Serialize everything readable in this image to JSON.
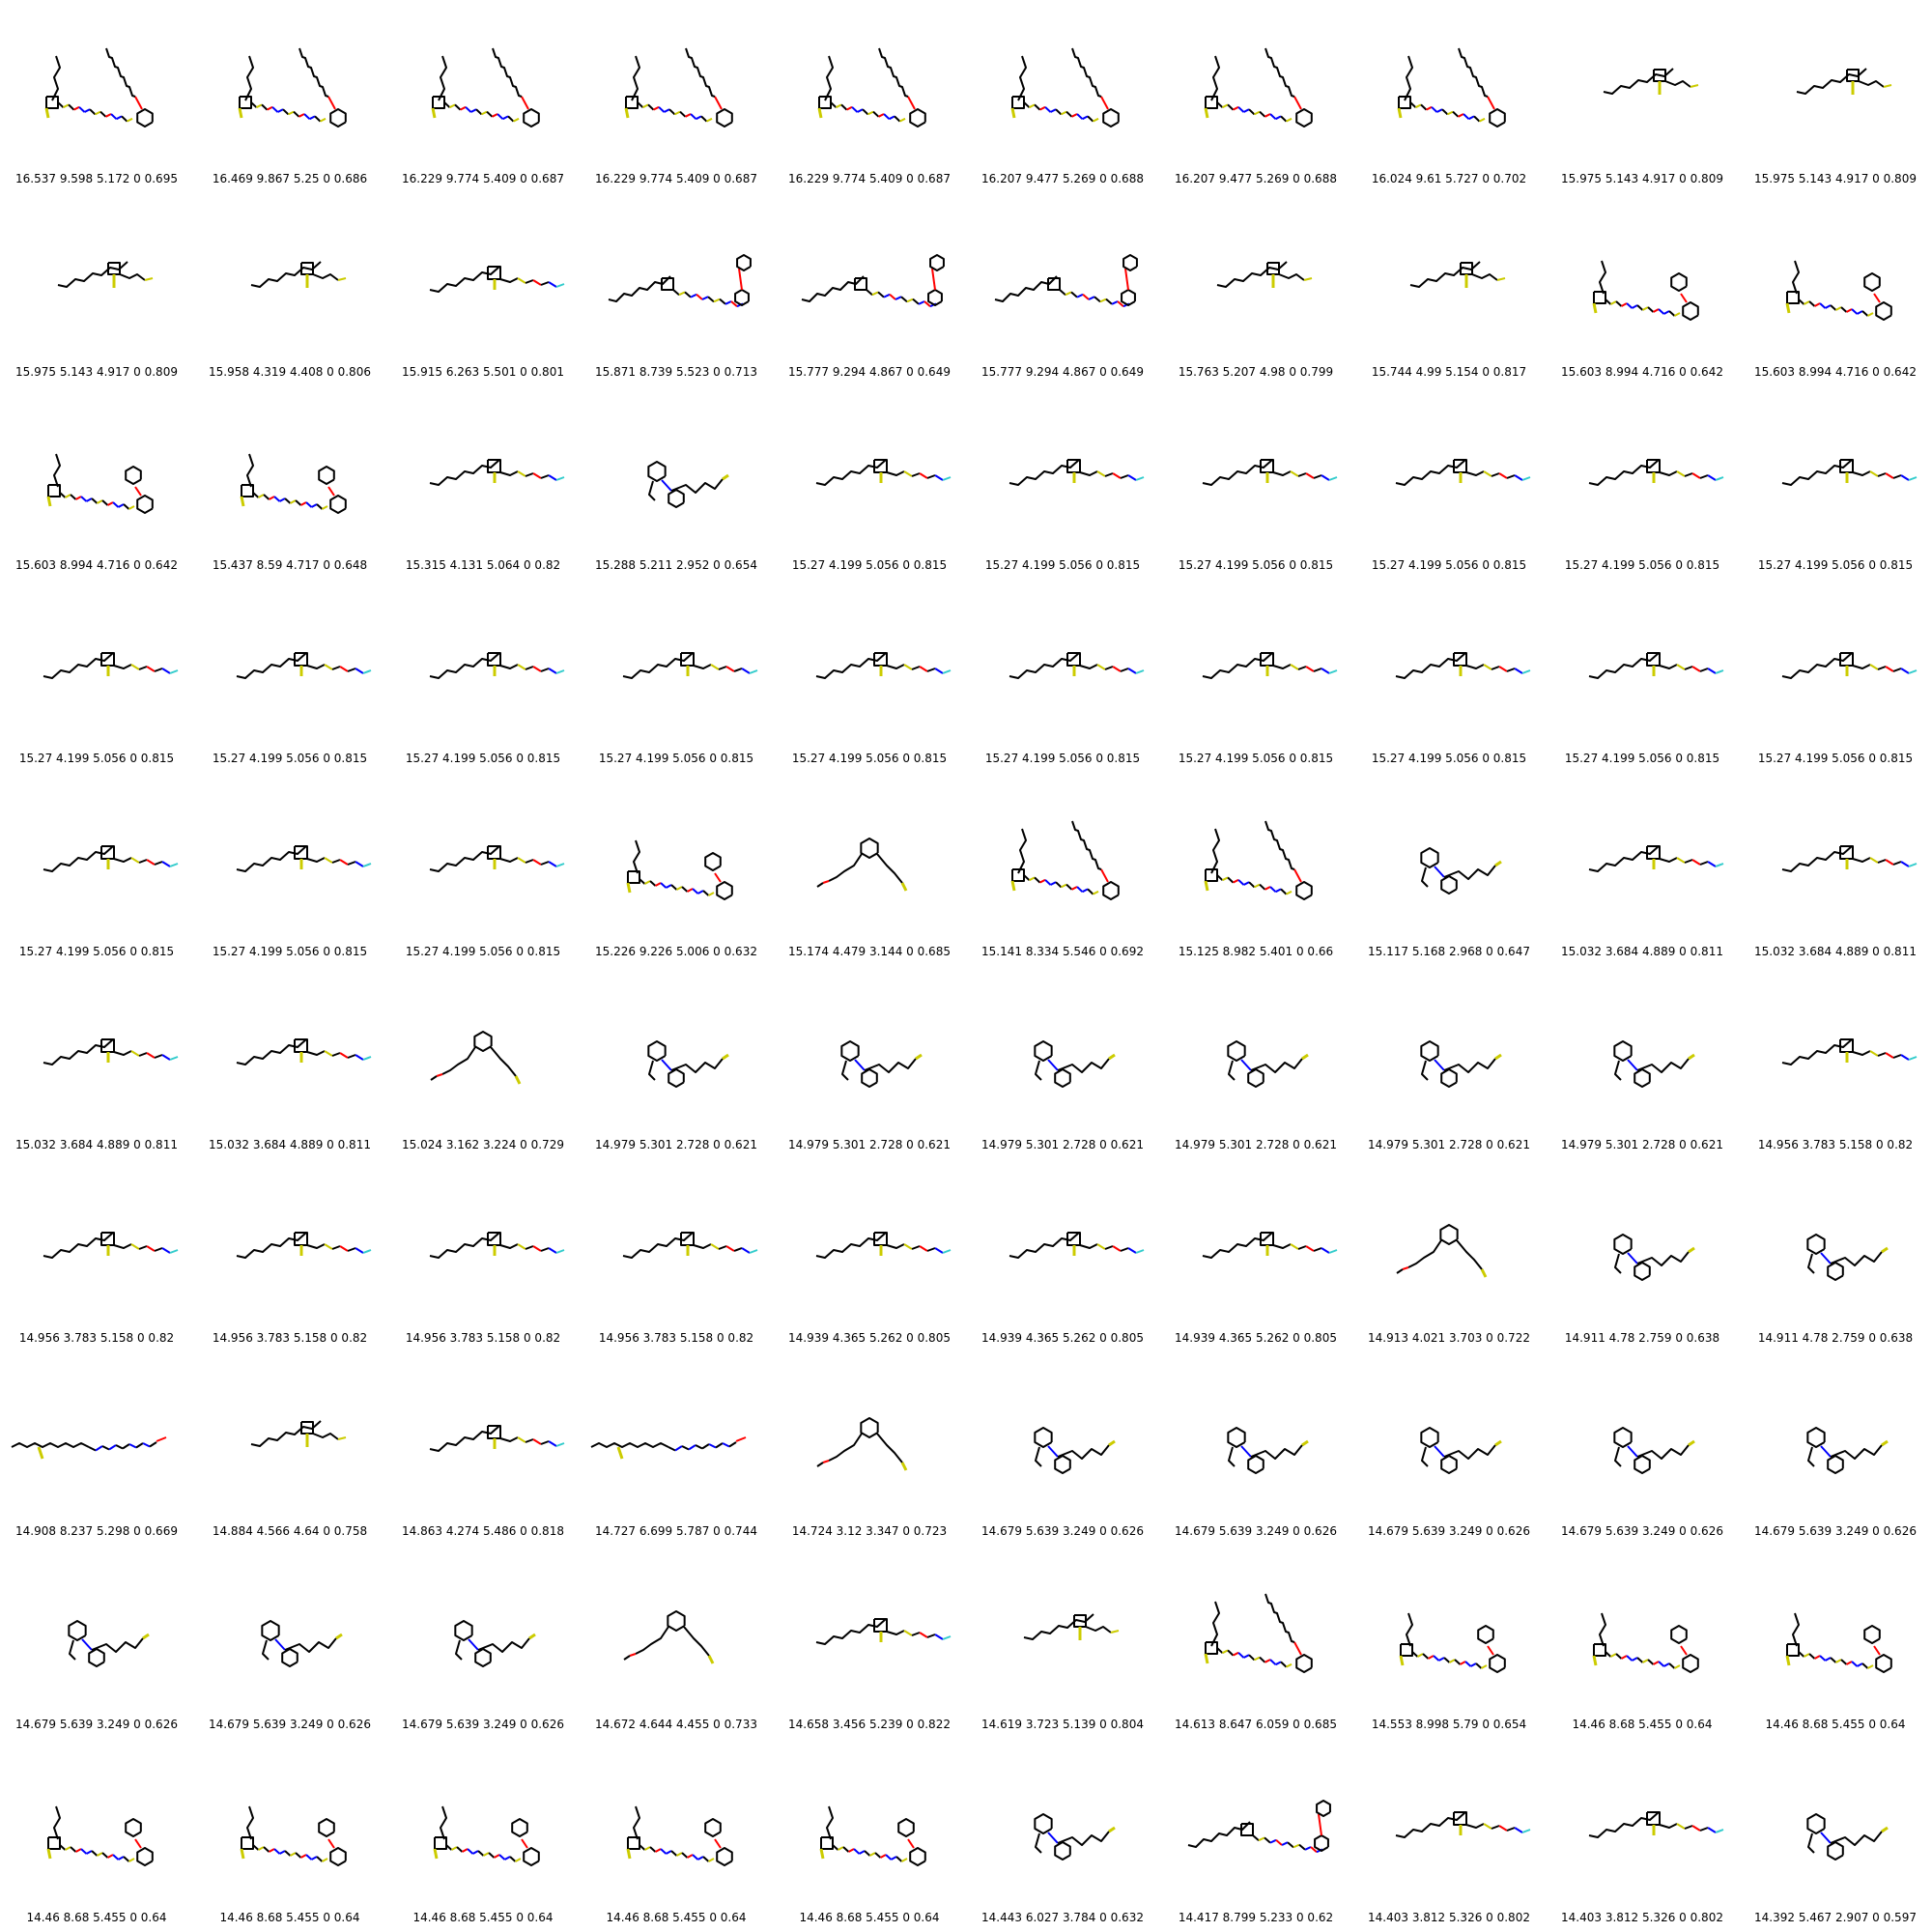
{
  "grid": {
    "columns": 10,
    "rows": 10
  },
  "colors": {
    "carbon": "#000000",
    "oxygen": "#ff0000",
    "nitrogen": "#0000ff",
    "sulfur": "#cccc00",
    "fluorine": "#33cccc"
  },
  "cells": [
    {
      "label": "16.537 9.598 5.172 0 0.695",
      "type": "macro-tall"
    },
    {
      "label": "16.469 9.867 5.25 0 0.686",
      "type": "macro-tall"
    },
    {
      "label": "16.229 9.774 5.409 0 0.687",
      "type": "macro-tall"
    },
    {
      "label": "16.229 9.774 5.409 0 0.687",
      "type": "macro-tall"
    },
    {
      "label": "16.229 9.774 5.409 0 0.687",
      "type": "macro-tall"
    },
    {
      "label": "16.207 9.477 5.269 0 0.688",
      "type": "macro-tall"
    },
    {
      "label": "16.207 9.477 5.269 0 0.688",
      "type": "macro-tall"
    },
    {
      "label": "16.024 9.61 5.727 0 0.702",
      "type": "macro-tall"
    },
    {
      "label": "15.975 5.143 4.917 0 0.809",
      "type": "small-linear"
    },
    {
      "label": "15.975 5.143 4.917 0 0.809",
      "type": "small-linear"
    },
    {
      "label": "15.975 5.143 4.917 0 0.809",
      "type": "small-linear"
    },
    {
      "label": "15.958 4.319 4.408 0 0.806",
      "type": "small-linear"
    },
    {
      "label": "15.915 6.263 5.501 0 0.801",
      "type": "linear"
    },
    {
      "label": "15.871 8.739 5.523 0 0.713",
      "type": "linear-ring"
    },
    {
      "label": "15.777 9.294 4.867 0 0.649",
      "type": "linear-ring"
    },
    {
      "label": "15.777 9.294 4.867 0 0.649",
      "type": "linear-ring"
    },
    {
      "label": "15.763 5.207 4.98 0 0.799",
      "type": "small-linear"
    },
    {
      "label": "15.744 4.99 5.154 0 0.817",
      "type": "small-linear"
    },
    {
      "label": "15.603 8.994 4.716 0 0.642",
      "type": "macro-ring"
    },
    {
      "label": "15.603 8.994 4.716 0 0.642",
      "type": "macro-ring"
    },
    {
      "label": "15.603 8.994 4.716 0 0.642",
      "type": "macro-ring"
    },
    {
      "label": "15.437 8.59 4.717 0 0.648",
      "type": "macro-ring"
    },
    {
      "label": "15.315 4.131 5.064 0 0.82",
      "type": "linear"
    },
    {
      "label": "15.288 5.211 2.952 0 0.654",
      "type": "aryl"
    },
    {
      "label": "15.27 4.199 5.056 0 0.815",
      "type": "linear"
    },
    {
      "label": "15.27 4.199 5.056 0 0.815",
      "type": "linear"
    },
    {
      "label": "15.27 4.199 5.056 0 0.815",
      "type": "linear"
    },
    {
      "label": "15.27 4.199 5.056 0 0.815",
      "type": "linear"
    },
    {
      "label": "15.27 4.199 5.056 0 0.815",
      "type": "linear"
    },
    {
      "label": "15.27 4.199 5.056 0 0.815",
      "type": "linear"
    },
    {
      "label": "15.27 4.199 5.056 0 0.815",
      "type": "linear"
    },
    {
      "label": "15.27 4.199 5.056 0 0.815",
      "type": "linear"
    },
    {
      "label": "15.27 4.199 5.056 0 0.815",
      "type": "linear"
    },
    {
      "label": "15.27 4.199 5.056 0 0.815",
      "type": "linear"
    },
    {
      "label": "15.27 4.199 5.056 0 0.815",
      "type": "linear"
    },
    {
      "label": "15.27 4.199 5.056 0 0.815",
      "type": "linear"
    },
    {
      "label": "15.27 4.199 5.056 0 0.815",
      "type": "linear"
    },
    {
      "label": "15.27 4.199 5.056 0 0.815",
      "type": "linear"
    },
    {
      "label": "15.27 4.199 5.056 0 0.815",
      "type": "linear"
    },
    {
      "label": "15.27 4.199 5.056 0 0.815",
      "type": "linear"
    },
    {
      "label": "15.27 4.199 5.056 0 0.815",
      "type": "linear"
    },
    {
      "label": "15.27 4.199 5.056 0 0.815",
      "type": "linear"
    },
    {
      "label": "15.27 4.199 5.056 0 0.815",
      "type": "linear"
    },
    {
      "label": "15.226 9.226 5.006 0 0.632",
      "type": "macro-ring"
    },
    {
      "label": "15.174 4.479 3.144 0 0.685",
      "type": "benzene"
    },
    {
      "label": "15.141 8.334 5.546 0 0.692",
      "type": "macro-tall"
    },
    {
      "label": "15.125 8.982 5.401 0 0.66",
      "type": "macro-tall"
    },
    {
      "label": "15.117 5.168 2.968 0 0.647",
      "type": "aryl"
    },
    {
      "label": "15.032 3.684 4.889 0 0.811",
      "type": "linear"
    },
    {
      "label": "15.032 3.684 4.889 0 0.811",
      "type": "linear"
    },
    {
      "label": "15.032 3.684 4.889 0 0.811",
      "type": "linear"
    },
    {
      "label": "15.032 3.684 4.889 0 0.811",
      "type": "linear"
    },
    {
      "label": "15.024 3.162 3.224 0 0.729",
      "type": "benzene"
    },
    {
      "label": "14.979 5.301 2.728 0 0.621",
      "type": "aryl"
    },
    {
      "label": "14.979 5.301 2.728 0 0.621",
      "type": "aryl"
    },
    {
      "label": "14.979 5.301 2.728 0 0.621",
      "type": "aryl"
    },
    {
      "label": "14.979 5.301 2.728 0 0.621",
      "type": "aryl"
    },
    {
      "label": "14.979 5.301 2.728 0 0.621",
      "type": "aryl"
    },
    {
      "label": "14.979 5.301 2.728 0 0.621",
      "type": "aryl"
    },
    {
      "label": "14.956 3.783 5.158 0 0.82",
      "type": "linear"
    },
    {
      "label": "14.956 3.783 5.158 0 0.82",
      "type": "linear"
    },
    {
      "label": "14.956 3.783 5.158 0 0.82",
      "type": "linear"
    },
    {
      "label": "14.956 3.783 5.158 0 0.82",
      "type": "linear"
    },
    {
      "label": "14.956 3.783 5.158 0 0.82",
      "type": "linear"
    },
    {
      "label": "14.939 4.365 5.262 0 0.805",
      "type": "linear"
    },
    {
      "label": "14.939 4.365 5.262 0 0.805",
      "type": "linear"
    },
    {
      "label": "14.939 4.365 5.262 0 0.805",
      "type": "linear"
    },
    {
      "label": "14.913 4.021 3.703 0 0.722",
      "type": "benzene"
    },
    {
      "label": "14.911 4.78 2.759 0 0.638",
      "type": "aryl"
    },
    {
      "label": "14.911 4.78 2.759 0 0.638",
      "type": "aryl"
    },
    {
      "label": "14.908 8.237 5.298 0 0.669",
      "type": "long-chain"
    },
    {
      "label": "14.884 4.566 4.64 0 0.758",
      "type": "small-linear"
    },
    {
      "label": "14.863 4.274 5.486 0 0.818",
      "type": "linear"
    },
    {
      "label": "14.727 6.699 5.787 0 0.744",
      "type": "long-chain"
    },
    {
      "label": "14.724 3.12 3.347 0 0.723",
      "type": "benzene"
    },
    {
      "label": "14.679 5.639 3.249 0 0.626",
      "type": "aryl"
    },
    {
      "label": "14.679 5.639 3.249 0 0.626",
      "type": "aryl"
    },
    {
      "label": "14.679 5.639 3.249 0 0.626",
      "type": "aryl"
    },
    {
      "label": "14.679 5.639 3.249 0 0.626",
      "type": "aryl"
    },
    {
      "label": "14.679 5.639 3.249 0 0.626",
      "type": "aryl"
    },
    {
      "label": "14.679 5.639 3.249 0 0.626",
      "type": "aryl"
    },
    {
      "label": "14.679 5.639 3.249 0 0.626",
      "type": "aryl"
    },
    {
      "label": "14.679 5.639 3.249 0 0.626",
      "type": "aryl"
    },
    {
      "label": "14.672 4.644 4.455 0 0.733",
      "type": "benzene"
    },
    {
      "label": "14.658 3.456 5.239 0 0.822",
      "type": "linear"
    },
    {
      "label": "14.619 3.723 5.139 0 0.804",
      "type": "small-linear"
    },
    {
      "label": "14.613 8.647 6.059 0 0.685",
      "type": "macro-tall"
    },
    {
      "label": "14.553 8.998 5.79 0 0.654",
      "type": "macro-ring"
    },
    {
      "label": "14.46 8.68 5.455 0 0.64",
      "type": "macro-ring"
    },
    {
      "label": "14.46 8.68 5.455 0 0.64",
      "type": "macro-ring"
    },
    {
      "label": "14.46 8.68 5.455 0 0.64",
      "type": "macro-ring"
    },
    {
      "label": "14.46 8.68 5.455 0 0.64",
      "type": "macro-ring"
    },
    {
      "label": "14.46 8.68 5.455 0 0.64",
      "type": "macro-ring"
    },
    {
      "label": "14.46 8.68 5.455 0 0.64",
      "type": "macro-ring"
    },
    {
      "label": "14.46 8.68 5.455 0 0.64",
      "type": "macro-ring"
    },
    {
      "label": "14.443 6.027 3.784 0 0.632",
      "type": "aryl"
    },
    {
      "label": "14.417 8.799 5.233 0 0.62",
      "type": "linear-ring"
    },
    {
      "label": "14.403 3.812 5.326 0 0.802",
      "type": "linear"
    },
    {
      "label": "14.403 3.812 5.326 0 0.802",
      "type": "linear"
    },
    {
      "label": "14.392 5.467 2.907 0 0.597",
      "type": "aryl"
    }
  ]
}
